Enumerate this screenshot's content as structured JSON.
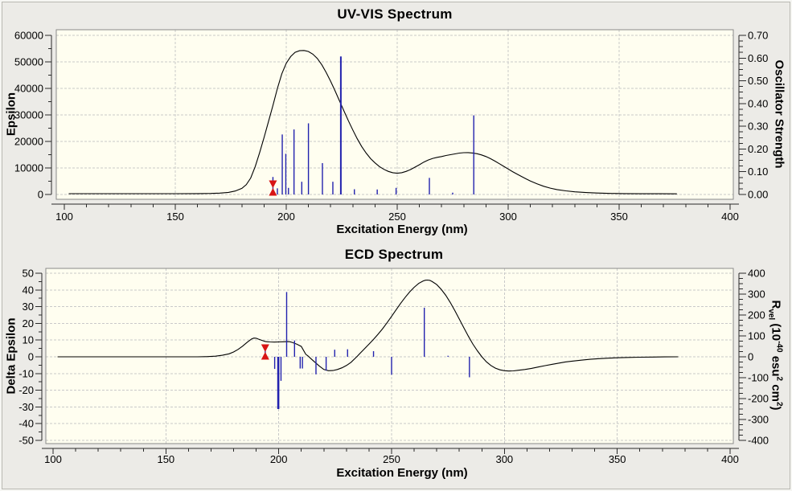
{
  "figure": {
    "background": "#ecebe7",
    "plot_background": "#fffef0",
    "grid_color": "#c9c9c9",
    "frame_color": "#8a8a8a",
    "axis_color": "#2a2a2a",
    "stick_color": "#2222ae",
    "curve_color": "#000000",
    "marker_color": "#d81414",
    "text_color": "#000000"
  },
  "chart_data": [
    {
      "id": "uvvis",
      "type": "line+stick",
      "title": "UV-VIS Spectrum",
      "xlabel": "Excitation Energy (nm)",
      "ylabel_left": "Epsilon",
      "ylabel_right": "Oscillator Strength",
      "grid": true,
      "xlim": [
        95.5,
        405.5
      ],
      "ylim_left": [
        0,
        60000
      ],
      "ylim_right": [
        0,
        0.7
      ],
      "x_ticks": [
        100,
        150,
        200,
        250,
        300,
        350,
        400
      ],
      "x_tick_labels": [
        "100",
        "150",
        "200",
        "250",
        "300",
        "350",
        "400"
      ],
      "x_minor_step": 10,
      "y_left_ticks": [
        0,
        10000,
        20000,
        30000,
        40000,
        50000,
        60000
      ],
      "y_left_tick_labels": [
        "0",
        "10000",
        "20000",
        "30000",
        "40000",
        "50000",
        "60000"
      ],
      "y_left_minor_step": 5000,
      "y_right_ticks": [
        0,
        0.1,
        0.2,
        0.3,
        0.4,
        0.5,
        0.6,
        0.7
      ],
      "y_right_tick_labels": [
        "0.00",
        "0.10",
        "0.20",
        "0.30",
        "0.40",
        "0.50",
        "0.60",
        "0.70"
      ],
      "y_right_minor_step": 0.025,
      "selected_excitation_nm": 194,
      "sticks_axis": "right",
      "sticks": [
        [
          194,
          0.077
        ],
        [
          196,
          0.027
        ],
        [
          198.2,
          0.264
        ],
        [
          199.8,
          0.179
        ],
        [
          201,
          0.029
        ],
        [
          203.5,
          0.286
        ],
        [
          207,
          0.056
        ],
        [
          210,
          0.313
        ],
        [
          216.3,
          0.138
        ],
        [
          221,
          0.056
        ],
        [
          224.6,
          0.607,
          2
        ],
        [
          230.7,
          0.023
        ],
        [
          241,
          0.022
        ],
        [
          249.5,
          0.029
        ],
        [
          264.5,
          0.073
        ],
        [
          275,
          0.008
        ],
        [
          284.5,
          0.348
        ]
      ],
      "curve_axis": "left",
      "curve": [
        [
          102,
          300
        ],
        [
          150,
          300
        ],
        [
          160,
          320
        ],
        [
          166,
          380
        ],
        [
          170,
          500
        ],
        [
          174,
          800
        ],
        [
          177,
          1300
        ],
        [
          180,
          2300
        ],
        [
          182,
          3700
        ],
        [
          184,
          6200
        ],
        [
          186,
          10500
        ],
        [
          188,
          15800
        ],
        [
          190,
          21500
        ],
        [
          192,
          27500
        ],
        [
          194,
          33500
        ],
        [
          196,
          40000
        ],
        [
          198,
          45500
        ],
        [
          200,
          49500
        ],
        [
          202,
          52000
        ],
        [
          204,
          53600
        ],
        [
          206,
          54200
        ],
        [
          208,
          54300
        ],
        [
          210,
          53900
        ],
        [
          212,
          52900
        ],
        [
          214,
          51300
        ],
        [
          216,
          48900
        ],
        [
          218,
          46000
        ],
        [
          220,
          42700
        ],
        [
          222,
          39100
        ],
        [
          224,
          35300
        ],
        [
          226,
          31500
        ],
        [
          228,
          27800
        ],
        [
          230,
          24300
        ],
        [
          232,
          21000
        ],
        [
          234,
          18100
        ],
        [
          236,
          15600
        ],
        [
          238,
          13500
        ],
        [
          240,
          11900
        ],
        [
          242,
          10500
        ],
        [
          244,
          9500
        ],
        [
          246,
          8700
        ],
        [
          248,
          8200
        ],
        [
          250,
          8000
        ],
        [
          252,
          8200
        ],
        [
          254,
          8700
        ],
        [
          256,
          9400
        ],
        [
          258,
          10300
        ],
        [
          260,
          11200
        ],
        [
          262,
          12200
        ],
        [
          264,
          13000
        ],
        [
          266,
          13600
        ],
        [
          268,
          14000
        ],
        [
          270,
          14300
        ],
        [
          272,
          14700
        ],
        [
          274,
          15000
        ],
        [
          276,
          15300
        ],
        [
          278,
          15600
        ],
        [
          280,
          15750
        ],
        [
          282,
          15800
        ],
        [
          284,
          15650
        ],
        [
          286,
          15350
        ],
        [
          288,
          14900
        ],
        [
          290,
          14300
        ],
        [
          292,
          13500
        ],
        [
          294,
          12600
        ],
        [
          296,
          11600
        ],
        [
          298,
          10600
        ],
        [
          300,
          9600
        ],
        [
          302,
          8600
        ],
        [
          304,
          7700
        ],
        [
          306,
          6800
        ],
        [
          308,
          5900
        ],
        [
          310,
          5100
        ],
        [
          313,
          4000
        ],
        [
          316,
          3100
        ],
        [
          319,
          2400
        ],
        [
          322,
          1850
        ],
        [
          326,
          1350
        ],
        [
          330,
          1000
        ],
        [
          335,
          720
        ],
        [
          340,
          540
        ],
        [
          346,
          400
        ],
        [
          352,
          320
        ],
        [
          360,
          275
        ],
        [
          368,
          260
        ],
        [
          376,
          255
        ]
      ]
    },
    {
      "id": "ecd",
      "type": "line+stick",
      "title": "ECD Spectrum",
      "xlabel": "Excitation Energy (nm)",
      "ylabel_left": "Delta Epsilon",
      "ylabel_right": "Rvel (10-40 esu2 cm2)",
      "ylabel_right_parts": [
        [
          "R",
          "span"
        ],
        [
          "vel",
          "sub"
        ],
        [
          " (10",
          "span"
        ],
        [
          "-40",
          "sup"
        ],
        [
          " esu",
          "span"
        ],
        [
          "2",
          "sup"
        ],
        [
          " cm",
          "span"
        ],
        [
          "2",
          "sup"
        ],
        [
          ")",
          "span"
        ]
      ],
      "grid": true,
      "xlim": [
        96.5,
        405.5
      ],
      "ylim_left": [
        -50,
        50
      ],
      "ylim_right": [
        -400,
        400
      ],
      "x_ticks": [
        100,
        150,
        200,
        250,
        300,
        350,
        400
      ],
      "x_tick_labels": [
        "100",
        "150",
        "200",
        "250",
        "300",
        "350",
        "400"
      ],
      "x_minor_step": 10,
      "y_left_ticks": [
        -50,
        -40,
        -30,
        -20,
        -10,
        0,
        10,
        20,
        30,
        40,
        50
      ],
      "y_left_tick_labels": [
        "-50",
        "-40",
        "-30",
        "-20",
        "-10",
        "0",
        "10",
        "20",
        "30",
        "40",
        "50"
      ],
      "y_left_minor_step": 5,
      "y_right_ticks": [
        -400,
        -300,
        -200,
        -100,
        0,
        100,
        200,
        300,
        400
      ],
      "y_right_tick_labels": [
        "-400",
        "-300",
        "-200",
        "-100",
        "0",
        "100",
        "200",
        "300",
        "400"
      ],
      "y_right_minor_step": 25,
      "selected_excitation_nm": 194,
      "sticks_axis": "right",
      "sticks": [
        [
          194,
          55
        ],
        [
          198.2,
          -58
        ],
        [
          199.8,
          -250,
          2.6
        ],
        [
          201,
          -115
        ],
        [
          203.5,
          310
        ],
        [
          207,
          78
        ],
        [
          209.5,
          -56
        ],
        [
          210.5,
          -56
        ],
        [
          216.5,
          -84
        ],
        [
          221,
          -66
        ],
        [
          224.8,
          34
        ],
        [
          230.5,
          36
        ],
        [
          242,
          27
        ],
        [
          250,
          -86
        ],
        [
          264.5,
          235
        ],
        [
          275,
          5
        ],
        [
          284.5,
          -98
        ]
      ],
      "curve_axis": "left",
      "curve": [
        [
          102,
          0
        ],
        [
          150,
          0
        ],
        [
          164,
          0
        ],
        [
          168,
          0.1
        ],
        [
          172,
          0.4
        ],
        [
          175,
          0.9
        ],
        [
          178,
          1.8
        ],
        [
          180,
          2.9
        ],
        [
          182,
          4.4
        ],
        [
          184,
          6.4
        ],
        [
          186,
          8.7
        ],
        [
          188,
          10.7
        ],
        [
          189,
          11.2
        ],
        [
          190,
          11.1
        ],
        [
          191,
          10.6
        ],
        [
          192,
          10.1
        ],
        [
          193,
          9.6
        ],
        [
          194,
          9.2
        ],
        [
          195,
          9.0
        ],
        [
          196,
          8.9
        ],
        [
          198,
          8.8
        ],
        [
          200,
          8.9
        ],
        [
          202,
          9.0
        ],
        [
          204,
          9.1
        ],
        [
          205,
          9.0
        ],
        [
          206,
          8.6
        ],
        [
          208,
          7.6
        ],
        [
          210,
          6.2
        ],
        [
          212,
          1.5
        ],
        [
          213,
          0.5
        ],
        [
          214,
          -0.8
        ],
        [
          216,
          -3.2
        ],
        [
          218,
          -5.6
        ],
        [
          220,
          -7.6
        ],
        [
          222,
          -8.3
        ],
        [
          224,
          -8.2
        ],
        [
          226,
          -7.6
        ],
        [
          228,
          -6.6
        ],
        [
          230,
          -5.2
        ],
        [
          232,
          -3.3
        ],
        [
          234,
          -0.7
        ],
        [
          235,
          0.6
        ],
        [
          236,
          2.0
        ],
        [
          238,
          4.8
        ],
        [
          240,
          7.6
        ],
        [
          242,
          10.4
        ],
        [
          244,
          13.5
        ],
        [
          246,
          16.8
        ],
        [
          248,
          20.4
        ],
        [
          250,
          24.2
        ],
        [
          252,
          28.1
        ],
        [
          254,
          31.9
        ],
        [
          256,
          35.5
        ],
        [
          258,
          38.8
        ],
        [
          260,
          41.6
        ],
        [
          262,
          43.9
        ],
        [
          264,
          45.4
        ],
        [
          265,
          45.8
        ],
        [
          266,
          45.9
        ],
        [
          267,
          45.7
        ],
        [
          268,
          45.0
        ],
        [
          270,
          43.2
        ],
        [
          272,
          40.4
        ],
        [
          274,
          36.8
        ],
        [
          276,
          32.5
        ],
        [
          278,
          27.7
        ],
        [
          280,
          22.6
        ],
        [
          282,
          17.4
        ],
        [
          284,
          12.4
        ],
        [
          286,
          7.7
        ],
        [
          288,
          3.6
        ],
        [
          290,
          0
        ],
        [
          292,
          -3.0
        ],
        [
          294,
          -5.2
        ],
        [
          296,
          -6.8
        ],
        [
          298,
          -7.8
        ],
        [
          300,
          -8.3
        ],
        [
          302,
          -8.5
        ],
        [
          304,
          -8.4
        ],
        [
          306,
          -8.1
        ],
        [
          309,
          -7.6
        ],
        [
          312,
          -6.9
        ],
        [
          315,
          -6.1
        ],
        [
          318,
          -5.3
        ],
        [
          321,
          -4.5
        ],
        [
          324,
          -3.8
        ],
        [
          327,
          -3.1
        ],
        [
          330,
          -2.6
        ],
        [
          334,
          -2.0
        ],
        [
          338,
          -1.5
        ],
        [
          342,
          -1.1
        ],
        [
          346,
          -0.8
        ],
        [
          350,
          -0.6
        ],
        [
          355,
          -0.4
        ],
        [
          360,
          -0.25
        ],
        [
          366,
          -0.15
        ],
        [
          371,
          -0.05
        ],
        [
          377,
          0
        ]
      ]
    }
  ]
}
